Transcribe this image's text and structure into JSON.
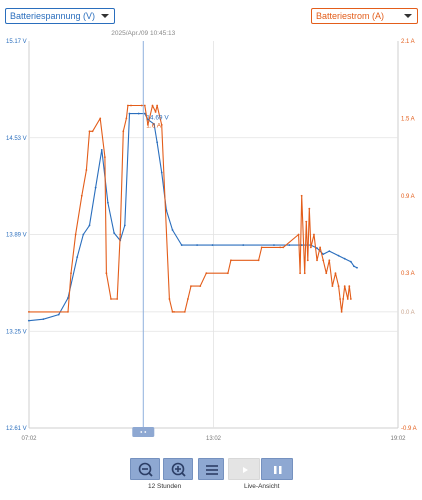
{
  "controls": {
    "left_select": "Batteriespannung (V)",
    "right_select": "Batteriestrom (A)",
    "zoom_label": "12 Stunden",
    "live_label": "Live-Ansicht"
  },
  "colors": {
    "voltage": "#2a6ebd",
    "current": "#e35d1a",
    "crosshair": "#8fb0dd",
    "grid": "#e2e2e2",
    "button": "#8ea8d2",
    "button_disabled": "#e4e4e4"
  },
  "icons": [
    "zoom-out-icon",
    "zoom-in-icon",
    "menu-icon",
    "play-icon",
    "pause-icon"
  ],
  "chart_data": {
    "type": "line",
    "cursor_time": "2025/Apr./09 10:45:13",
    "cursor_voltage_label": "14.69 V",
    "cursor_current_label": "1.6 A",
    "cursor_x": 10.75,
    "xlim": [
      7.0333,
      19.0333
    ],
    "x_ticks": [
      {
        "label": "07:02",
        "value": 7.0333
      },
      {
        "label": "13:02",
        "value": 13.0333
      },
      {
        "label": "19:02",
        "value": 19.0333
      }
    ],
    "y_left": {
      "ylim": [
        12.61,
        15.17
      ],
      "ticks": [
        {
          "label": "15.17 V",
          "value": 15.17
        },
        {
          "label": "14.53 V",
          "value": 14.53
        },
        {
          "label": "13.89 V",
          "value": 13.89
        },
        {
          "label": "13.25 V",
          "value": 13.25
        },
        {
          "label": "12.61 V",
          "value": 12.61
        }
      ]
    },
    "y_right": {
      "ylim": [
        -0.9,
        2.1
      ],
      "ticks": [
        {
          "label": "2.1 A",
          "value": 2.1
        },
        {
          "label": "1.5 A",
          "value": 1.5
        },
        {
          "label": "0.9 A",
          "value": 0.9
        },
        {
          "label": "0.3 A",
          "value": 0.3
        },
        {
          "label": "0.0 A",
          "value": 0.0
        },
        {
          "label": "-0.9 A",
          "value": -0.9
        }
      ]
    },
    "series": [
      {
        "axis": "left",
        "x": [
          7.03,
          7.5,
          8.0,
          8.3,
          8.6,
          8.8,
          9.0,
          9.2,
          9.4,
          9.6,
          9.8,
          10.0,
          10.15,
          10.3,
          10.6,
          10.8,
          10.9,
          11.1,
          11.2,
          11.35,
          11.5,
          11.7,
          12.0,
          12.5,
          13.0,
          14.0,
          15.0,
          15.5,
          15.9,
          16.2,
          16.4,
          16.6,
          16.8,
          17.1,
          17.3,
          17.5,
          17.6,
          17.7
        ],
        "y": [
          13.32,
          13.33,
          13.36,
          13.47,
          13.74,
          13.89,
          13.95,
          14.2,
          14.45,
          14.1,
          13.9,
          13.85,
          13.95,
          14.69,
          14.69,
          14.69,
          14.65,
          14.62,
          14.5,
          14.3,
          14.05,
          13.92,
          13.82,
          13.82,
          13.82,
          13.82,
          13.82,
          13.82,
          13.82,
          13.82,
          13.8,
          13.76,
          13.78,
          13.75,
          13.73,
          13.71,
          13.68,
          13.67
        ]
      },
      {
        "axis": "right",
        "x": [
          7.03,
          8.3,
          8.4,
          8.55,
          8.75,
          8.9,
          9.0,
          9.1,
          9.35,
          9.5,
          9.55,
          9.7,
          9.9,
          10.0,
          10.1,
          10.2,
          10.25,
          10.35,
          10.7,
          10.8,
          10.9,
          11.05,
          11.15,
          11.2,
          11.35,
          11.6,
          11.7,
          11.75,
          12.1,
          12.2,
          12.3,
          12.6,
          12.8,
          13.5,
          13.6,
          14.5,
          14.6,
          15.2,
          15.3,
          15.8,
          15.85,
          15.9,
          16.0,
          16.05,
          16.1,
          16.15,
          16.2,
          16.3,
          16.4,
          16.5,
          16.6,
          16.7,
          16.8,
          16.9,
          17.0,
          17.1,
          17.15,
          17.2,
          17.25,
          17.3,
          17.4,
          17.45,
          17.5
        ],
        "y": [
          0.0,
          0.0,
          0.3,
          0.6,
          0.9,
          1.1,
          1.4,
          1.4,
          1.5,
          1.2,
          0.3,
          0.1,
          0.1,
          0.6,
          1.4,
          1.5,
          1.6,
          1.6,
          1.6,
          1.6,
          1.45,
          1.6,
          1.55,
          1.6,
          1.45,
          0.1,
          0.0,
          0.0,
          0.0,
          0.1,
          0.2,
          0.2,
          0.3,
          0.3,
          0.4,
          0.4,
          0.5,
          0.5,
          0.5,
          0.6,
          0.3,
          0.9,
          0.3,
          0.7,
          0.4,
          0.8,
          0.5,
          0.6,
          0.4,
          0.5,
          0.4,
          0.3,
          0.4,
          0.2,
          0.3,
          0.2,
          0.1,
          0.0,
          0.1,
          0.2,
          0.1,
          0.2,
          0.1
        ]
      }
    ]
  }
}
